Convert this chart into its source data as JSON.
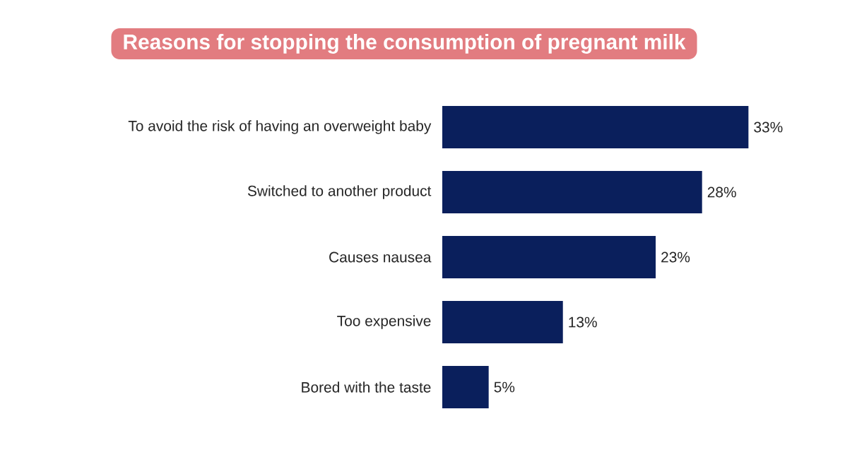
{
  "chart_data": {
    "type": "bar",
    "orientation": "horizontal",
    "title": "Reasons for stopping the consumption of pregnant milk",
    "categories": [
      "To avoid the risk of having an overweight baby",
      "Switched to another product",
      "Causes nausea",
      "Too expensive",
      "Bored with the taste"
    ],
    "values": [
      33,
      28,
      23,
      13,
      5
    ],
    "value_labels": [
      "33%",
      "28%",
      "23%",
      "13%",
      "5%"
    ],
    "color": "#0a1f5c"
  }
}
